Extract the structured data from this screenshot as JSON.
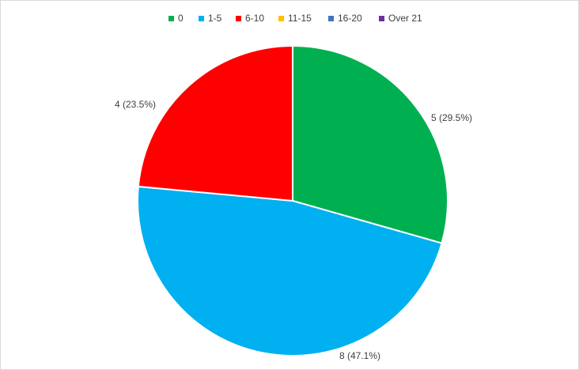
{
  "chart_data": {
    "type": "pie",
    "categories": [
      "0",
      "1-5",
      "6-10",
      "11-15",
      "16-20",
      "Over 21"
    ],
    "values": [
      5,
      8,
      4,
      0,
      0,
      0
    ],
    "value_labels": [
      "5  (29.5%)",
      "8 (47.1%)",
      "4 (23.5%)",
      null,
      null,
      null
    ],
    "colors": [
      "#00b050",
      "#00b0f0",
      "#ff0000",
      "#ffc000",
      "#4472c4",
      "#7030a0"
    ],
    "legend": "top"
  }
}
